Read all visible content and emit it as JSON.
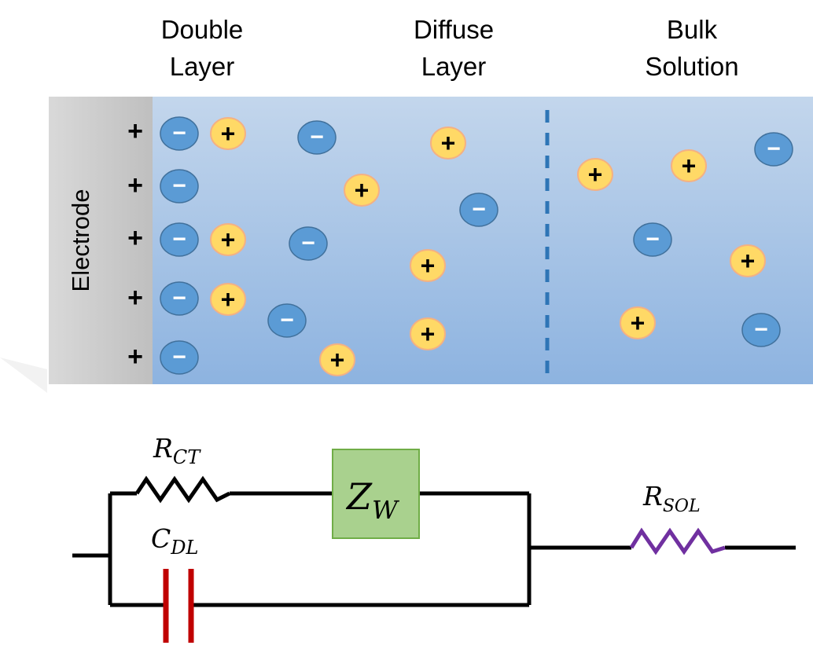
{
  "headers": {
    "double_layer": [
      "Double",
      "Layer"
    ],
    "diffuse_layer": [
      "Diffuse",
      "Layer"
    ],
    "bulk_solution": [
      "Bulk",
      "Solution"
    ]
  },
  "electrode_label": "Electrode",
  "symbols": {
    "cation": "+",
    "anion": "−",
    "surface_charge": "+"
  },
  "circuit": {
    "r_ct": {
      "main": "R",
      "sub": "CT"
    },
    "c_dl": {
      "main": "C",
      "sub": "DL"
    },
    "z_w": {
      "main": "Z",
      "sub": "W"
    },
    "r_sol": {
      "main": "R",
      "sub": "SOL"
    }
  },
  "colors": {
    "electrode": "#c8c8c8",
    "solution_light": "#c3d6ec",
    "solution_dark": "#8db3e0",
    "anion_fill": "#5b9bd5",
    "cation_fill": "#ffd966",
    "cation_border": "#f4b183",
    "capacitor": "#c00000",
    "resistor_sol": "#7030a0",
    "warburg_fill": "#a9d18e",
    "warburg_border": "#70ad47",
    "divider": "#2e75b6"
  }
}
